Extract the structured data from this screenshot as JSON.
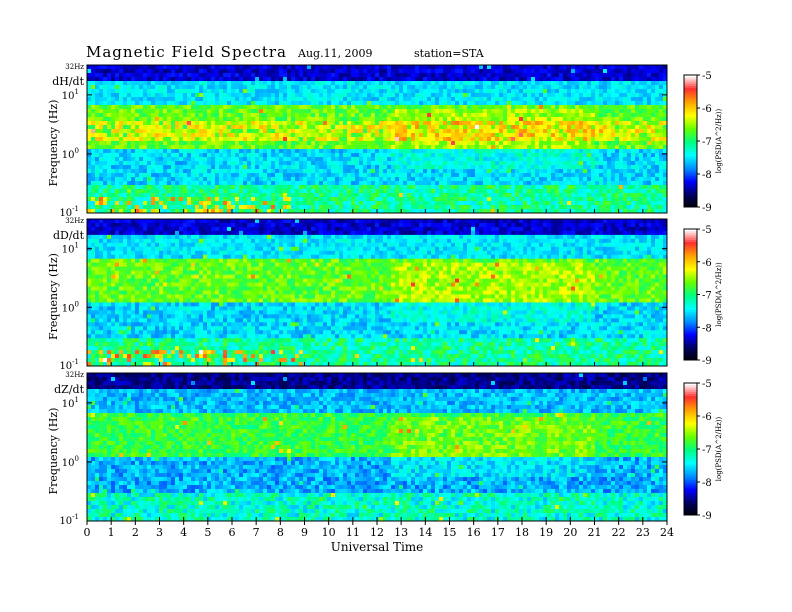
{
  "header": {
    "title": "Magnetic  Field  Spectra",
    "date": "Aug.11, 2009",
    "station": "station=STA"
  },
  "chart_data": {
    "type": "heatmap",
    "title": "Magnetic  Field  Spectra",
    "xlabel": "Universal Time",
    "ylabel": "Frequency  (Hz)",
    "x_ticks": [
      "0",
      "1",
      "2",
      "3",
      "4",
      "5",
      "6",
      "7",
      "8",
      "9",
      "10",
      "11",
      "12",
      "13",
      "14",
      "15",
      "16",
      "17",
      "18",
      "19",
      "20",
      "21",
      "22",
      "23",
      "24"
    ],
    "xlim": [
      0,
      24
    ],
    "y_scale": "log",
    "ylim": [
      0.1,
      32
    ],
    "y_top_label": "32Hz",
    "y_tick_labels": [
      {
        "base": "10",
        "exp": "1"
      },
      {
        "base": "10",
        "exp": "0"
      },
      {
        "base": "10",
        "exp": "-1"
      }
    ],
    "colorbar": {
      "label": "log(PSD(A^2/Hz))",
      "range": [
        -9,
        -5
      ],
      "ticks": [
        "-5",
        "-6",
        "-7",
        "-8",
        "-9"
      ],
      "colors": [
        "#ffffff",
        "#ff3030",
        "#ffa500",
        "#ffff00",
        "#66ff00",
        "#00ff80",
        "#00ffff",
        "#0090ff",
        "#0000ff",
        "#000060",
        "#000000"
      ]
    },
    "panels": [
      {
        "label": "dH/dt"
      },
      {
        "label": "dD/dt"
      },
      {
        "label": "dZ/dt"
      }
    ]
  }
}
